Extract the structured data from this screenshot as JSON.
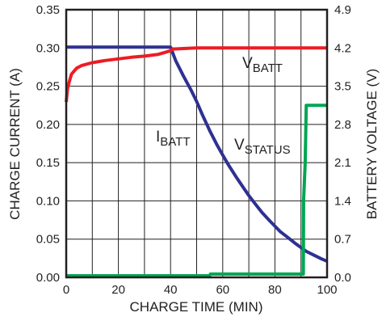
{
  "chart_data": {
    "type": "line",
    "xlabel": "CHARGE TIME (MIN)",
    "ylabel_left": "CHARGE CURRENT (A)",
    "ylabel_right": "BATTERY VOLTAGE (V)",
    "xlim": [
      0,
      100
    ],
    "ylim_left": [
      0,
      0.35
    ],
    "ylim_right": [
      0,
      4.9
    ],
    "x_ticks": [
      "0",
      "20",
      "40",
      "60",
      "80",
      "100"
    ],
    "y_left_ticks": [
      "0.00",
      "0.05",
      "0.10",
      "0.15",
      "0.20",
      "0.25",
      "0.30",
      "0.35"
    ],
    "y_right_ticks": [
      "0.0",
      "0.7",
      "1.4",
      "2.1",
      "2.8",
      "3.5",
      "4.2",
      "4.9"
    ],
    "grid": true,
    "series": [
      {
        "label_main": "I",
        "label_sub": "BATT",
        "axis": "left",
        "color": "#2e3192",
        "x": [
          0,
          10,
          20,
          30,
          40,
          42,
          45,
          48,
          50,
          52,
          55,
          58,
          60,
          62,
          65,
          68,
          70,
          72,
          75,
          78,
          80,
          82,
          85,
          88,
          90,
          92,
          95,
          98,
          100
        ],
        "y": [
          0.301,
          0.301,
          0.301,
          0.301,
          0.301,
          0.283,
          0.263,
          0.244,
          0.23,
          0.214,
          0.192,
          0.172,
          0.16,
          0.148,
          0.132,
          0.117,
          0.107,
          0.098,
          0.085,
          0.074,
          0.067,
          0.06,
          0.052,
          0.044,
          0.039,
          0.034,
          0.029,
          0.024,
          0.021
        ]
      },
      {
        "label_main": "V",
        "label_sub": "BATT",
        "axis": "right",
        "color": "#ed1c24",
        "x": [
          0,
          0.5,
          1,
          2,
          4,
          6,
          10,
          15,
          20,
          25,
          30,
          35,
          38,
          40,
          41,
          45,
          50,
          60,
          70,
          80,
          90,
          100
        ],
        "y": [
          3.21,
          3.45,
          3.55,
          3.72,
          3.83,
          3.88,
          3.93,
          3.97,
          4.0,
          4.03,
          4.05,
          4.08,
          4.12,
          4.15,
          4.18,
          4.19,
          4.2,
          4.2,
          4.2,
          4.2,
          4.2,
          4.2
        ]
      },
      {
        "label_main": "V",
        "label_sub": "STATUS",
        "axis": "right",
        "color": "#00a651",
        "x": [
          0,
          20,
          40,
          55,
          55.3,
          70,
          85,
          90.9,
          91.0,
          91.6,
          92.0,
          100
        ],
        "y": [
          0.03,
          0.03,
          0.03,
          0.03,
          0.06,
          0.06,
          0.06,
          0.06,
          1.4,
          2.1,
          3.15,
          3.15
        ]
      }
    ]
  }
}
